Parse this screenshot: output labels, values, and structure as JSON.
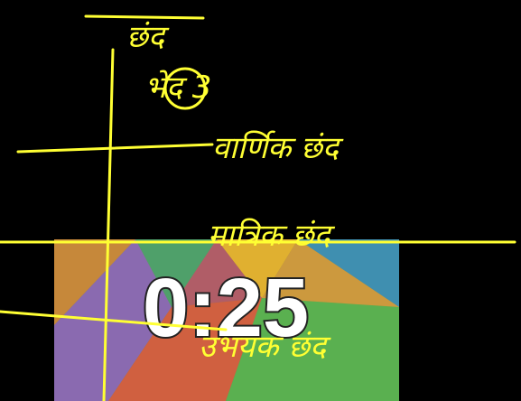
{
  "annotations": {
    "heading": "छंद",
    "count": "भेद 3",
    "items": [
      "वार्णिक छंद",
      "मात्रिक छंद",
      "उभयक छंद"
    ]
  },
  "timer": {
    "time": "0:25"
  }
}
